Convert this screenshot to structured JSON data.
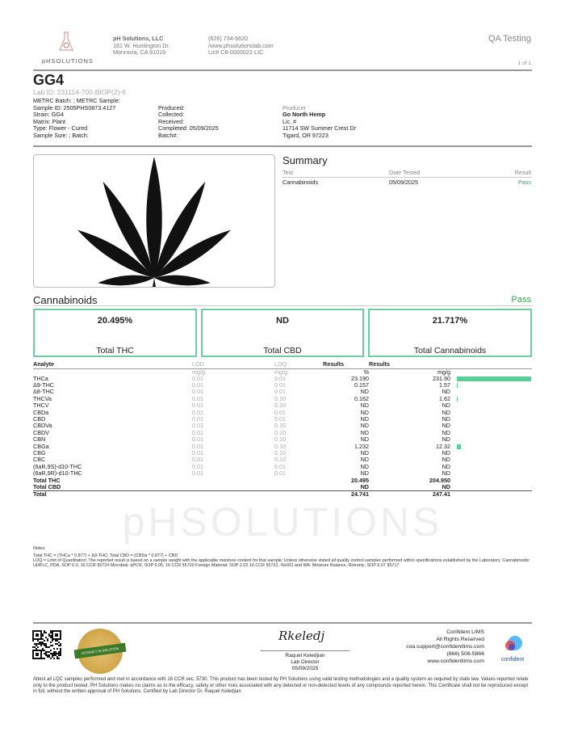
{
  "header": {
    "logo_text": "pHSOLUTIONS",
    "company": "pH Solutions, LLC",
    "address1": "181 W. Huntington Dr.",
    "address2": "Monrovia, CA 91016",
    "phone": "(626) 734-6620",
    "website": "/www.phsolutionslab.com",
    "license": "Lic# C8-0000022-LIC",
    "doc_type": "QA Testing",
    "page": "1 of 1"
  },
  "sample": {
    "name": "GG4",
    "lab_id": "Lab ID: 231114-700-BIOP(2)-6",
    "metrc": "METRC Batch: ; METRC Sample:",
    "sample_id": "Sample ID: 2505PHS0873.4127",
    "strain": "Strain: GG4",
    "matrix": "Matrix: Plant",
    "type": "Type: Flower - Cured",
    "sample_size": "Sample Size: ; Batch:",
    "produced": "Produced:",
    "collected": "Collected:",
    "received": "Received:",
    "completed": "Completed: 05/09/2025",
    "batch": "Batch#:"
  },
  "producer": {
    "label": "Producer",
    "name": "Go North Hemp",
    "lic": "Lic. #",
    "address1": "11714 SW Summer Crest Dr",
    "address2": "Tigard, OR 97223"
  },
  "summary": {
    "title": "Summary",
    "col_test": "Test",
    "col_date": "Date Tested",
    "col_result": "Result",
    "rows": [
      {
        "test": "Cannabinoids",
        "date": "05/09/2025",
        "result": "Pass"
      }
    ]
  },
  "cannabinoids": {
    "title": "Cannabinoids",
    "status": "Pass",
    "totals": [
      {
        "value": "20.495%",
        "label": "Total THC"
      },
      {
        "value": "ND",
        "label": "Total CBD"
      },
      {
        "value": "21.717%",
        "label": "Total Cannabinoids"
      }
    ],
    "headers": {
      "analyte": "Analyte",
      "lod": "LOD",
      "loq": "LOQ",
      "results_pct": "Results",
      "results_mg": "Results"
    },
    "units": {
      "lod": "mg/g",
      "loq": "mg/g",
      "pct": "%",
      "mg": "mg/g"
    },
    "rows": [
      {
        "analyte": "THCa",
        "lod": "0.01",
        "loq": "0.01",
        "pct": "23.190",
        "mg": "231.90",
        "bar": 231.9
      },
      {
        "analyte": "Δ9-THC",
        "lod": "0.01",
        "loq": "0.01",
        "pct": "0.157",
        "mg": "1.57",
        "bar": 1.57
      },
      {
        "analyte": "Δ8-THC",
        "lod": "0.01",
        "loq": "0.01",
        "pct": "ND",
        "mg": "ND",
        "bar": 0
      },
      {
        "analyte": "THCVa",
        "lod": "0.01",
        "loq": "0.10",
        "pct": "0.162",
        "mg": "1.62",
        "bar": 1.62
      },
      {
        "analyte": "THCV",
        "lod": "0.01",
        "loq": "0.10",
        "pct": "ND",
        "mg": "ND",
        "bar": 0
      },
      {
        "analyte": "CBDa",
        "lod": "0.01",
        "loq": "0.01",
        "pct": "ND",
        "mg": "ND",
        "bar": 0
      },
      {
        "analyte": "CBD",
        "lod": "0.01",
        "loq": "0.01",
        "pct": "ND",
        "mg": "ND",
        "bar": 0
      },
      {
        "analyte": "CBDVa",
        "lod": "0.01",
        "loq": "0.10",
        "pct": "ND",
        "mg": "ND",
        "bar": 0
      },
      {
        "analyte": "CBDV",
        "lod": "0.01",
        "loq": "0.10",
        "pct": "ND",
        "mg": "ND",
        "bar": 0
      },
      {
        "analyte": "CBN",
        "lod": "0.01",
        "loq": "0.10",
        "pct": "ND",
        "mg": "ND",
        "bar": 0
      },
      {
        "analyte": "CBGa",
        "lod": "0.01",
        "loq": "0.10",
        "pct": "1.232",
        "mg": "12.32",
        "bar": 12.32
      },
      {
        "analyte": "CBG",
        "lod": "0.01",
        "loq": "0.10",
        "pct": "ND",
        "mg": "ND",
        "bar": 0
      },
      {
        "analyte": "CBC",
        "lod": "0.01",
        "loq": "0.10",
        "pct": "ND",
        "mg": "ND",
        "bar": 0
      },
      {
        "analyte": "(6aR,9S)-d10-THC",
        "lod": "0.01",
        "loq": "0.01",
        "pct": "ND",
        "mg": "ND",
        "bar": 0
      },
      {
        "analyte": "(6aR,9R)-d10-THC",
        "lod": "0.01",
        "loq": "0.01",
        "pct": "ND",
        "mg": "ND",
        "bar": 0
      }
    ],
    "total_rows": [
      {
        "analyte": "Total THC",
        "pct": "20.495",
        "mg": "204.950"
      },
      {
        "analyte": "Total CBD",
        "pct": "ND",
        "mg": "ND"
      },
      {
        "analyte": "Total",
        "pct": "24.741",
        "mg": "247.41"
      }
    ],
    "bar_color": "#5ccf98"
  },
  "notes": {
    "title": "Notes:",
    "line1": "Total THC = (THCa * 0.877) + Δ9-THC; Total CBD = (CBDa * 0.877) + CBD",
    "line2": "LOQ = Limit of Quantitation; The reported result is based on a sample weight with the applicable moisture content for that sample; Unless otherwise stated all quality control samples performed within specifications established by the Laboratory. Cannabinoids: UHPLC, PDA, SOP 6.0, 16 CCR §5724 Microbial: qPCR, SOP 6.05, 16 CCR §5720 Foreign Material: SOP 2.02 16 CCR §5722, %H2O and WA: Moisture Balance, Rotronic, SOP 6.07 §5717"
  },
  "footer": {
    "seal_text": "POTENCY IN SOLUTION",
    "signer": "Raquel Keledjian",
    "signer_title": "Lab Director",
    "sign_date": "05/09/2025",
    "lims_name": "Confident LIMS",
    "rights": "All Rights Reserved",
    "email": "coa.support@confidentlims.com",
    "lims_phone": "(866) 506-5866",
    "lims_web": "www.confidentlims.com",
    "lims_logo": "confident",
    "disclaimer": "Attest all LQC samples performed and met in accordance with 16 CCR sec. 5730. This product has been tested by PH Solutions using valid testing methodologies and a quality system as required by state law. Values reported relate only to the product tested. PH Solutions makes no claims as to the efficacy, safety or other risks associated with any detected or non-detected levels of any compounds reported herein. This Certificate shall not be reproduced except in full, without the written approval of PH Solutions. Certified by Lab Director Dr. Raquel Keledjian"
  },
  "watermark": "pHSOLUTIONS",
  "colors": {
    "pass": "#2fa84f",
    "accent": "#6ccf9f"
  }
}
